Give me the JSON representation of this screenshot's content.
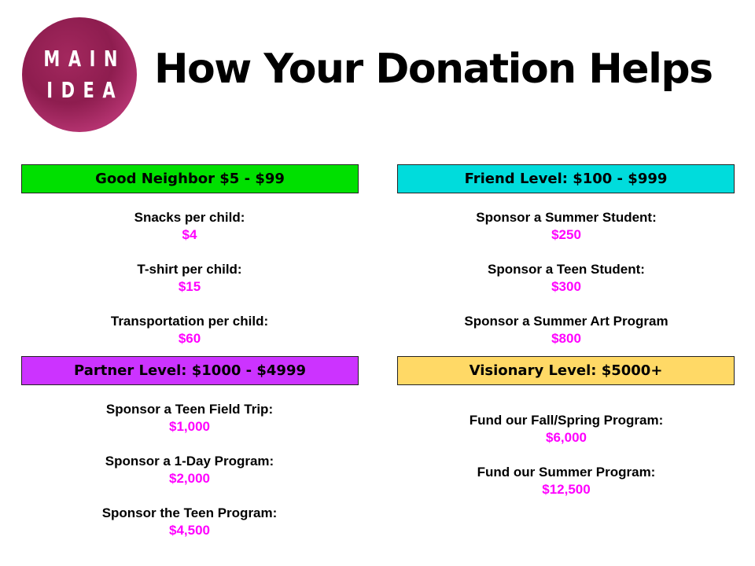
{
  "logo": {
    "line1": "MAIN",
    "line2": "IDEA",
    "color": "#9a2257"
  },
  "title": "How Your Donation Helps",
  "value_color": "#ff00ff",
  "levels": [
    {
      "label": "Good Neighbor $5 - $99",
      "color": "#00e000",
      "items": [
        {
          "label": "Snacks per child:",
          "value": "$4"
        },
        {
          "label": "T-shirt per child:",
          "value": "$15"
        },
        {
          "label": "Transportation per child:",
          "value": "$60"
        }
      ]
    },
    {
      "label": "Friend Level: $100 - $999",
      "color": "#00dcdc",
      "items": [
        {
          "label": "Sponsor a Summer Student:",
          "value": "$250"
        },
        {
          "label": "Sponsor a Teen Student:",
          "value": "$300"
        },
        {
          "label": "Sponsor a Summer Art Program",
          "value": "$800"
        }
      ]
    },
    {
      "label": "Partner Level: $1000 - $4999",
      "color": "#cc33ff",
      "items": [
        {
          "label": "Sponsor a Teen Field Trip:",
          "value": "$1,000"
        },
        {
          "label": "Sponsor a 1-Day Program:",
          "value": "$2,000"
        },
        {
          "label": "Sponsor the Teen Program:",
          "value": "$4,500"
        }
      ]
    },
    {
      "label": "Visionary Level: $5000+",
      "color": "#ffd966",
      "items": [
        {
          "label": "Fund our Fall/Spring Program:",
          "value": "$6,000"
        },
        {
          "label": "Fund our Summer Program:",
          "value": "$12,500"
        }
      ]
    }
  ]
}
